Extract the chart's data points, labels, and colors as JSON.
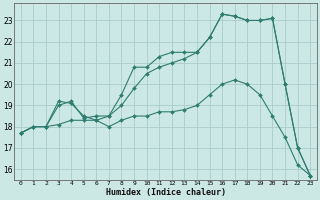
{
  "xlabel": "Humidex (Indice chaleur)",
  "bg_color": "#cce8e4",
  "grid_color": "#aaccca",
  "line_color": "#2e7d6e",
  "xlim": [
    -0.5,
    23.5
  ],
  "ylim": [
    15.5,
    23.8
  ],
  "yticks": [
    16,
    17,
    18,
    19,
    20,
    21,
    22,
    23
  ],
  "xticks": [
    0,
    1,
    2,
    3,
    4,
    5,
    6,
    7,
    8,
    9,
    10,
    11,
    12,
    13,
    14,
    15,
    16,
    17,
    18,
    19,
    20,
    21,
    22,
    23
  ],
  "series1": [
    [
      0,
      17.7
    ],
    [
      1,
      18.0
    ],
    [
      2,
      18.0
    ],
    [
      3,
      18.1
    ],
    [
      4,
      18.3
    ],
    [
      5,
      18.3
    ],
    [
      6,
      18.3
    ],
    [
      7,
      18.0
    ],
    [
      8,
      18.3
    ],
    [
      9,
      18.5
    ],
    [
      10,
      18.5
    ],
    [
      11,
      18.7
    ],
    [
      12,
      18.7
    ],
    [
      13,
      18.8
    ],
    [
      14,
      19.0
    ],
    [
      15,
      19.5
    ],
    [
      16,
      20.0
    ],
    [
      17,
      20.2
    ],
    [
      18,
      20.0
    ],
    [
      19,
      19.5
    ],
    [
      20,
      18.5
    ],
    [
      21,
      17.5
    ],
    [
      22,
      16.2
    ],
    [
      23,
      15.7
    ]
  ],
  "series2": [
    [
      0,
      17.7
    ],
    [
      1,
      18.0
    ],
    [
      2,
      18.0
    ],
    [
      3,
      19.2
    ],
    [
      4,
      19.1
    ],
    [
      5,
      18.5
    ],
    [
      6,
      18.3
    ],
    [
      7,
      18.5
    ],
    [
      8,
      19.0
    ],
    [
      9,
      19.8
    ],
    [
      10,
      20.5
    ],
    [
      11,
      20.8
    ],
    [
      12,
      21.0
    ],
    [
      13,
      21.2
    ],
    [
      14,
      21.5
    ],
    [
      15,
      22.2
    ],
    [
      16,
      23.3
    ],
    [
      17,
      23.2
    ],
    [
      18,
      23.0
    ],
    [
      19,
      23.0
    ],
    [
      20,
      23.1
    ],
    [
      21,
      20.0
    ],
    [
      22,
      17.0
    ],
    [
      23,
      15.7
    ]
  ],
  "series3": [
    [
      0,
      17.7
    ],
    [
      1,
      18.0
    ],
    [
      2,
      18.0
    ],
    [
      3,
      19.0
    ],
    [
      4,
      19.2
    ],
    [
      5,
      18.4
    ],
    [
      6,
      18.5
    ],
    [
      7,
      18.5
    ],
    [
      8,
      19.5
    ],
    [
      9,
      20.8
    ],
    [
      10,
      20.8
    ],
    [
      11,
      21.3
    ],
    [
      12,
      21.5
    ],
    [
      13,
      21.5
    ],
    [
      14,
      21.5
    ],
    [
      15,
      22.2
    ],
    [
      16,
      23.3
    ],
    [
      17,
      23.2
    ],
    [
      18,
      23.0
    ],
    [
      19,
      23.0
    ],
    [
      20,
      23.1
    ],
    [
      21,
      20.0
    ],
    [
      22,
      17.0
    ],
    [
      23,
      15.7
    ]
  ]
}
